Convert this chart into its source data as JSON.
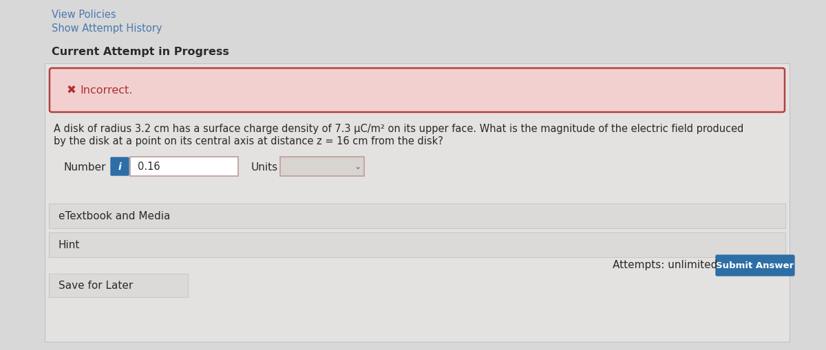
{
  "bg_color": "#d8d8d8",
  "view_policies_text": "View Policies",
  "show_attempt_text": "Show Attempt History",
  "current_attempt_text": "Current Attempt in Progress",
  "incorrect_text": "Incorrect.",
  "question_line1": "A disk of radius 3.2 cm has a surface charge density of 7.3 μC/m² on its upper face. What is the magnitude of the electric field produced",
  "question_line2": "by the disk at a point on its central axis at distance z = 16 cm from the disk?",
  "number_label": "Number",
  "number_value": "0.16",
  "units_label": "Units",
  "etextbook_text": "eTextbook and Media",
  "hint_text": "Hint",
  "save_text": "Save for Later",
  "attempts_text": "Attempts: unlimited",
  "submit_text": "Submit Answer",
  "link_color": "#4a7aad",
  "incorrect_bg": "#f2d0d0",
  "incorrect_border": "#b04040",
  "incorrect_x_color": "#b03030",
  "submit_btn_color": "#2e6ea6",
  "info_btn_color": "#2e6ea6",
  "content_bg": "#e8e6e4",
  "panel_bg": "#e0dedc",
  "panel_border": "#c8c5c2",
  "input_bg": "#ffffff",
  "input_border": "#c0a0a0",
  "units_border": "#c0a0a0",
  "dark_text": "#2a2a2a",
  "gray_text": "#666666",
  "white": "#ffffff"
}
